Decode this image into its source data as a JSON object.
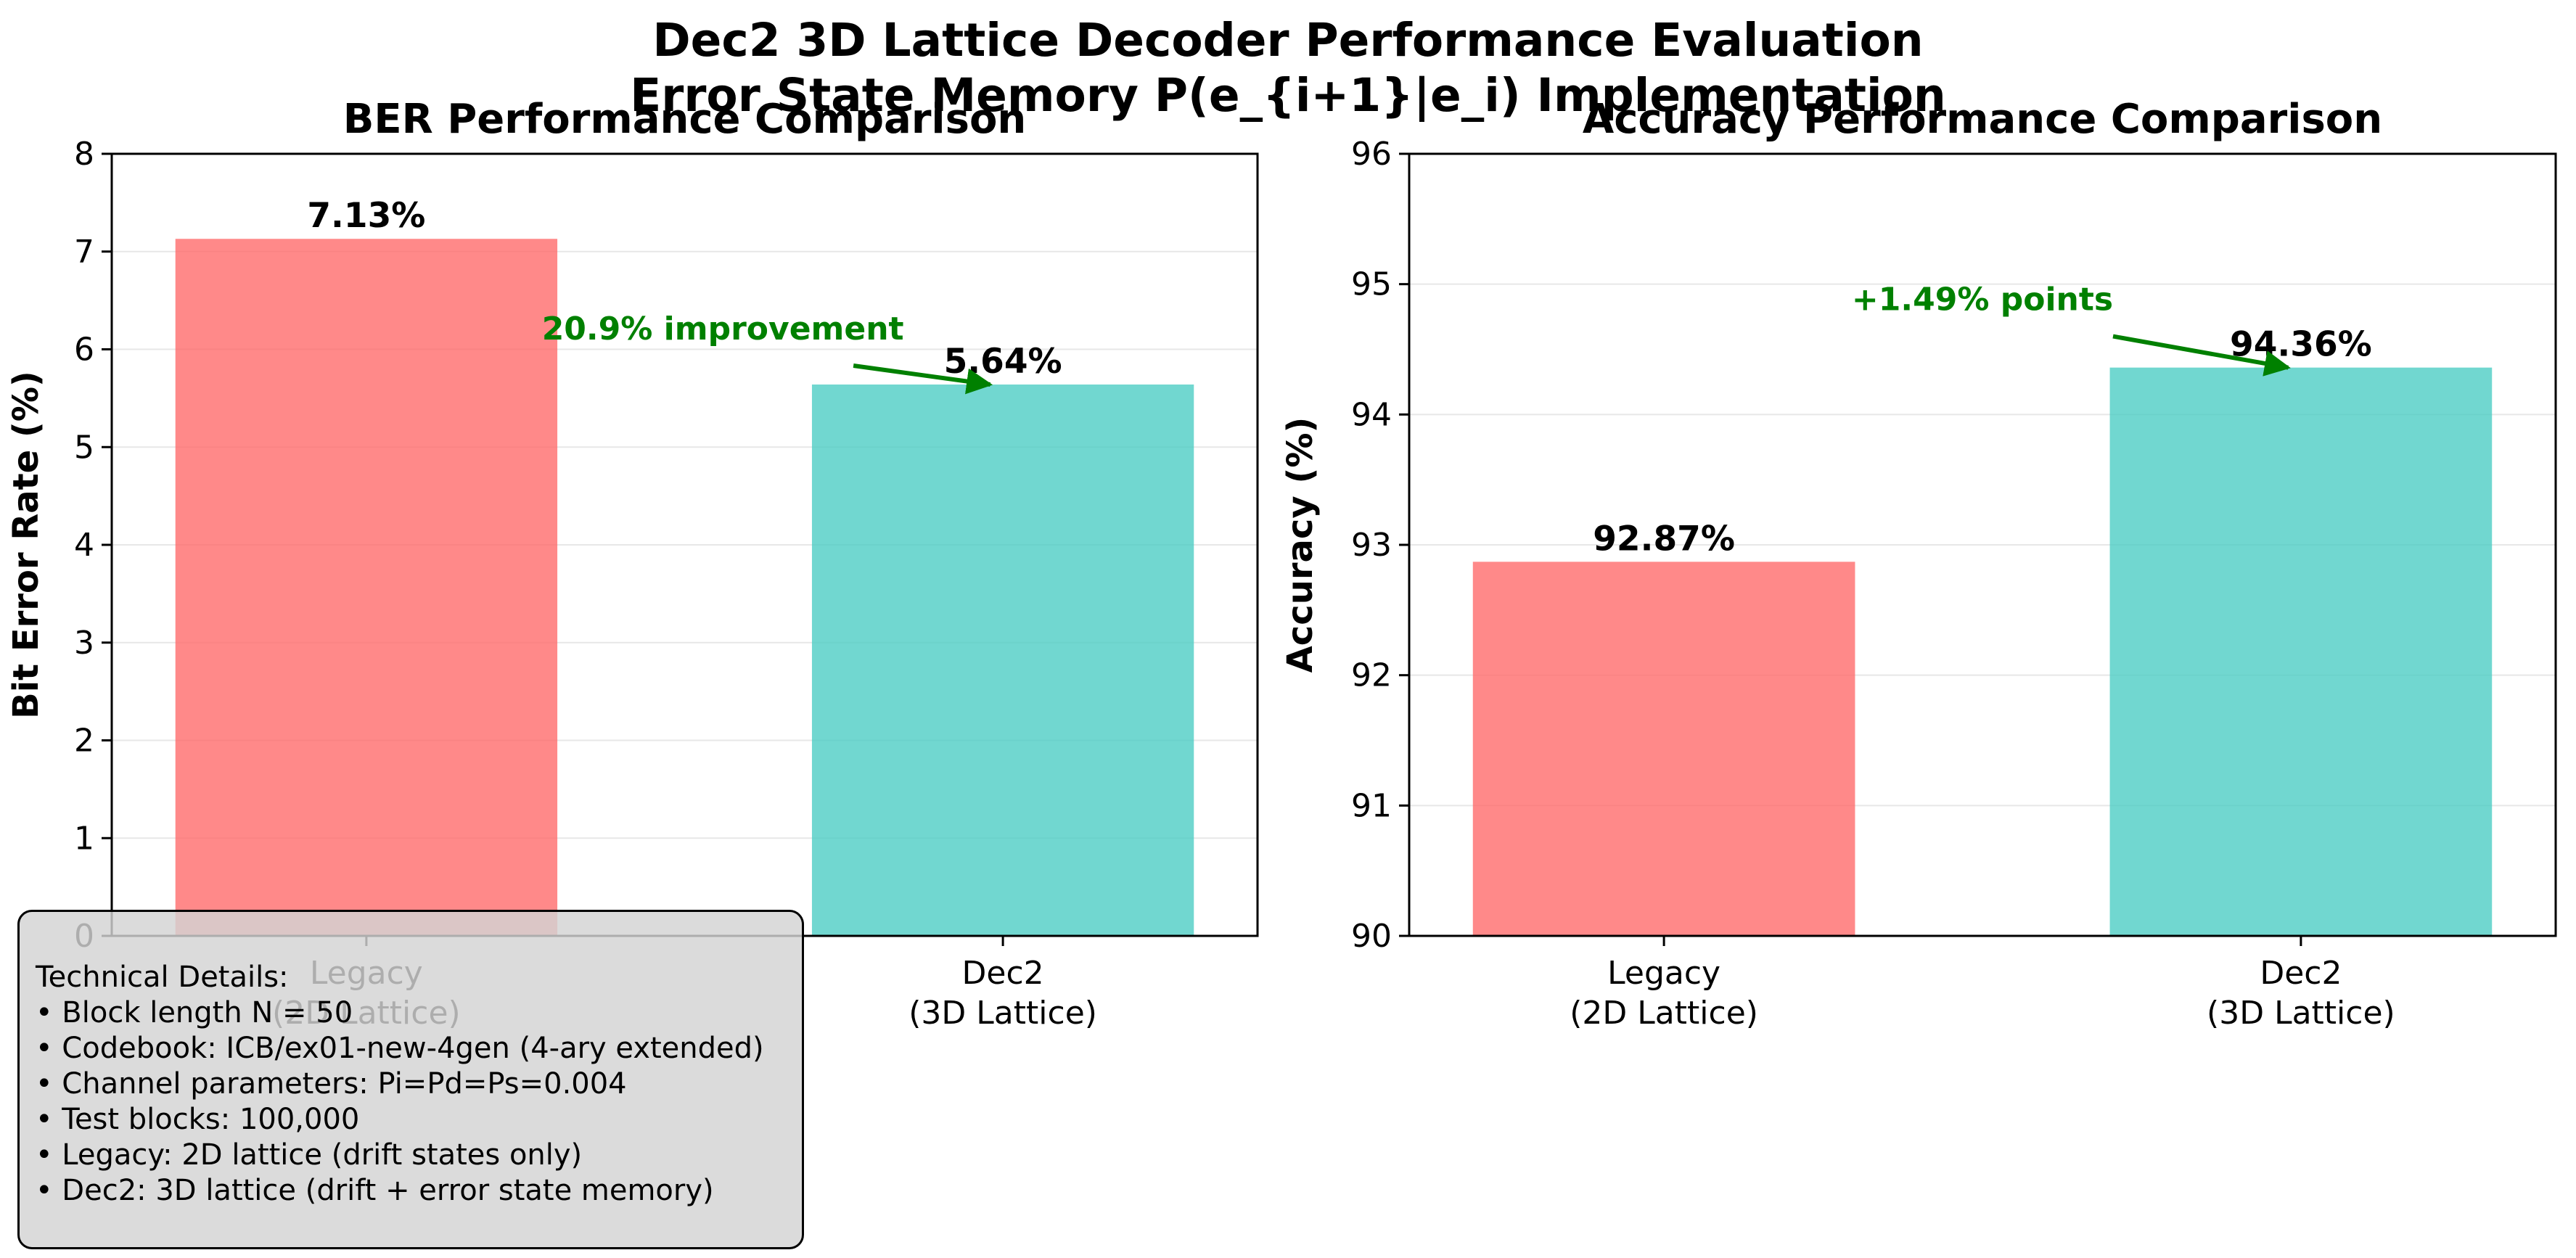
{
  "figure": {
    "title_line1": "Dec2 3D Lattice Decoder Performance Evaluation",
    "title_line2": "Error State Memory P(e_{i+1}|e_i) Implementation"
  },
  "chart_data": [
    {
      "type": "bar",
      "title": "BER Performance Comparison",
      "xlabel": "",
      "ylabel": "Bit Error Rate (%)",
      "categories": [
        "Legacy\n(2D Lattice)",
        "Dec2\n(3D Lattice)"
      ],
      "categories_display": [
        [
          "Legacy",
          "(2D Lattice)"
        ],
        [
          "Dec2",
          "(3D Lattice)"
        ]
      ],
      "values": [
        7.13,
        5.64
      ],
      "value_labels": [
        "7.13%",
        "5.64%"
      ],
      "colors": [
        "#ff6b6b",
        "#4ecdc4"
      ],
      "ylim": [
        0,
        8
      ],
      "yticks": [
        "0",
        "1",
        "2",
        "3",
        "4",
        "5",
        "6",
        "7",
        "8"
      ],
      "grid": "y",
      "annotation": {
        "text": "20.9% improvement",
        "color": "#008000",
        "x": 0.56,
        "y": 6.1,
        "target_x": 0.98,
        "target_y": 5.64
      }
    },
    {
      "type": "bar",
      "title": "Accuracy Performance Comparison",
      "xlabel": "",
      "ylabel": "Accuracy (%)",
      "categories": [
        "Legacy\n(2D Lattice)",
        "Dec2\n(3D Lattice)"
      ],
      "categories_display": [
        [
          "Legacy",
          "(2D Lattice)"
        ],
        [
          "Dec2",
          "(3D Lattice)"
        ]
      ],
      "values": [
        92.87,
        94.36
      ],
      "value_labels": [
        "92.87%",
        "94.36%"
      ],
      "colors": [
        "#ff6b6b",
        "#4ecdc4"
      ],
      "ylim": [
        90,
        96
      ],
      "yticks": [
        "90",
        "91",
        "92",
        "93",
        "94",
        "95",
        "96"
      ],
      "grid": "y",
      "annotation": {
        "text": "+1.49% points",
        "color": "#008000",
        "x": 0.5,
        "y": 94.8,
        "target_x": 0.98,
        "target_y": 94.36
      }
    }
  ],
  "technical_details": {
    "heading": "Technical Details:",
    "lines": [
      "• Block length N = 50",
      "• Codebook: ICB/ex01-new-4gen (4-ary extended)",
      "• Channel parameters: Pi=Pd=Ps=0.004",
      "• Test blocks: 100,000",
      "• Legacy: 2D lattice (drift states only)",
      "• Dec2: 3D lattice (drift + error state memory)"
    ]
  }
}
